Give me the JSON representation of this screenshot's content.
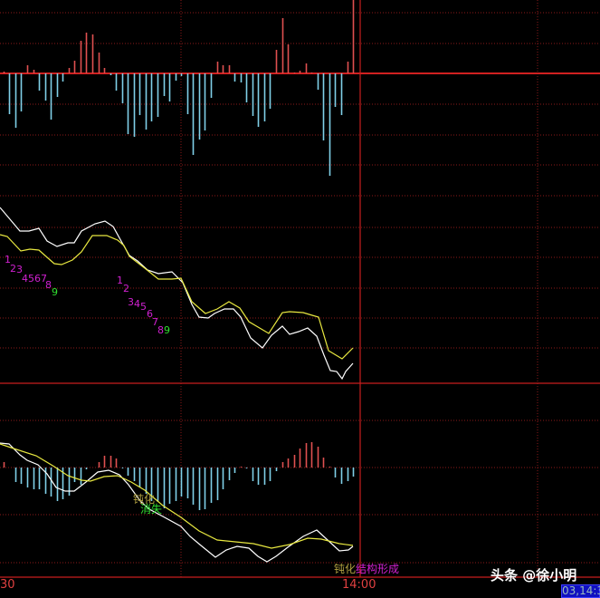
{
  "colors": {
    "grid": "#8b1a1a",
    "axis": "#c81e1e",
    "up": "#e05050",
    "down": "#7fd0e8",
    "fast": "#ffffff",
    "slow": "#e8e840",
    "magenta": "#d020d0",
    "green": "#30e030",
    "olive": "#b0a040"
  },
  "axis": {
    "time_left": "30",
    "time_mid": "14:00",
    "cursor_readout": "03,14:3"
  },
  "watermark": "头条 @徐小明",
  "annotations": {
    "blunt1": "钝化",
    "vanish": "消失",
    "blunt2": "钝化",
    "structure": "结构形成",
    "seq1": [
      "1",
      "2",
      "3",
      "4567",
      "8",
      "9"
    ],
    "seq2": [
      "1",
      "2",
      "3",
      "4",
      "5",
      "6",
      "7",
      "8",
      "9"
    ]
  },
  "chart_data": [
    {
      "type": "bar",
      "panel": "top",
      "title": "",
      "bars_x": [
        4,
        10,
        17,
        23,
        30,
        37,
        43,
        50,
        56,
        63,
        69,
        76,
        82,
        89,
        95,
        102,
        109,
        115,
        122,
        128,
        135,
        141,
        148,
        154,
        161,
        167,
        174,
        181,
        187,
        194,
        200,
        207,
        213,
        220,
        226,
        233,
        240,
        246,
        253,
        259,
        266,
        272,
        279,
        285,
        292,
        298,
        305,
        312,
        318,
        325,
        331,
        338,
        344,
        351,
        357,
        364,
        370,
        377,
        384,
        390
      ],
      "values": [
        2,
        -45,
        -60,
        -42,
        9,
        4,
        -19,
        -30,
        -51,
        -26,
        -9,
        6,
        14,
        36,
        45,
        43,
        23,
        6,
        -2,
        -19,
        -33,
        -67,
        -70,
        -46,
        -62,
        -53,
        -48,
        -25,
        -31,
        -8,
        -3,
        -45,
        -90,
        -73,
        -63,
        -27,
        13,
        9,
        9,
        -9,
        -10,
        -32,
        -47,
        -59,
        -53,
        -39,
        26,
        61,
        32,
        1,
        3,
        11,
        1,
        -18,
        -74,
        -113,
        -37,
        -46,
        13,
        81
      ]
    },
    {
      "type": "line",
      "panel": "middle",
      "series": [
        {
          "color": "fast",
          "points": [
            [
              0,
              211
            ],
            [
              22,
              185
            ],
            [
              32,
              185
            ],
            [
              43,
              188
            ],
            [
              52,
              174
            ],
            [
              63,
              168
            ],
            [
              75,
              172
            ],
            [
              82,
              172
            ],
            [
              90,
              185
            ],
            [
              105,
              193
            ],
            [
              116,
              196
            ],
            [
              125,
              190
            ],
            [
              135,
              172
            ],
            [
              143,
              158
            ],
            [
              152,
              152
            ],
            [
              163,
              142
            ],
            [
              175,
              138
            ],
            [
              190,
              140
            ],
            [
              202,
              128
            ],
            [
              212,
              104
            ],
            [
              220,
              90
            ],
            [
              230,
              89
            ],
            [
              237,
              94
            ],
            [
              248,
              99
            ],
            [
              258,
              99
            ],
            [
              266,
              90
            ],
            [
              277,
              67
            ],
            [
              290,
              56
            ],
            [
              300,
              70
            ],
            [
              312,
              80
            ],
            [
              320,
              71
            ],
            [
              330,
              74
            ],
            [
              340,
              78
            ],
            [
              350,
              69
            ],
            [
              358,
              48
            ],
            [
              365,
              31
            ],
            [
              372,
              30
            ],
            [
              378,
              22
            ],
            [
              382,
              30
            ],
            [
              390,
              39
            ]
          ]
        },
        {
          "color": "slow",
          "points": [
            [
              0,
              181
            ],
            [
              8,
              179
            ],
            [
              23,
              163
            ],
            [
              33,
              165
            ],
            [
              43,
              164
            ],
            [
              52,
              156
            ],
            [
              60,
              149
            ],
            [
              68,
              148
            ],
            [
              80,
              153
            ],
            [
              90,
              162
            ],
            [
              102,
              180
            ],
            [
              118,
              180
            ],
            [
              130,
              175
            ],
            [
              137,
              169
            ],
            [
              143,
              157
            ],
            [
              160,
              144
            ],
            [
              175,
              132
            ],
            [
              190,
              132
            ],
            [
              200,
              133
            ],
            [
              212,
              107
            ],
            [
              227,
              94
            ],
            [
              240,
              99
            ],
            [
              253,
              107
            ],
            [
              265,
              100
            ],
            [
              275,
              85
            ],
            [
              297,
              72
            ],
            [
              312,
              95
            ],
            [
              320,
              96
            ],
            [
              335,
              95
            ],
            [
              345,
              92
            ],
            [
              352,
              90
            ],
            [
              363,
              53
            ],
            [
              378,
              44
            ],
            [
              390,
              56
            ]
          ]
        }
      ]
    },
    {
      "type": "bar+line",
      "panel": "bottom",
      "bars_x": [
        4,
        17,
        23,
        30,
        37,
        43,
        50,
        56,
        63,
        69,
        76,
        82,
        89,
        95,
        109,
        115,
        122,
        128,
        135,
        141,
        148,
        154,
        161,
        167,
        174,
        181,
        187,
        194,
        200,
        207,
        213,
        220,
        226,
        233,
        240,
        246,
        253,
        259,
        266,
        272,
        279,
        285,
        292,
        298,
        305,
        312,
        318,
        325,
        331,
        338,
        344,
        351,
        357,
        364,
        370,
        377,
        384,
        390
      ],
      "values": [
        6,
        -16,
        -18,
        -22,
        -24,
        -24,
        -29,
        -32,
        -37,
        -35,
        -31,
        -16,
        -19,
        -2,
        6,
        13,
        13,
        10,
        -1,
        -9,
        -15,
        -22,
        -29,
        -37,
        -38,
        -45,
        -40,
        -37,
        -32,
        -34,
        -41,
        -47,
        -46,
        -39,
        -36,
        -24,
        -14,
        -6,
        1,
        -1,
        -15,
        -19,
        -19,
        -15,
        -4,
        6,
        10,
        14,
        21,
        27,
        28,
        23,
        11,
        1,
        -11,
        -18,
        -15,
        -10
      ],
      "series": [
        {
          "color": "fast",
          "points": [
            [
              0,
              27
            ],
            [
              10,
              26
            ],
            [
              22,
              14
            ],
            [
              30,
              8
            ],
            [
              42,
              3
            ],
            [
              52,
              -7
            ],
            [
              62,
              -22
            ],
            [
              72,
              -26
            ],
            [
              82,
              -26
            ],
            [
              95,
              -16
            ],
            [
              108,
              -5
            ],
            [
              120,
              -3
            ],
            [
              132,
              -8
            ],
            [
              142,
              -19
            ],
            [
              155,
              -37
            ],
            [
              165,
              -46
            ],
            [
              180,
              -54
            ],
            [
              200,
              -65
            ],
            [
              210,
              -76
            ],
            [
              222,
              -86
            ],
            [
              238,
              -99
            ],
            [
              250,
              -91
            ],
            [
              262,
              -87
            ],
            [
              275,
              -89
            ],
            [
              285,
              -98
            ],
            [
              295,
              -104
            ],
            [
              305,
              -98
            ],
            [
              318,
              -88
            ],
            [
              335,
              -76
            ],
            [
              350,
              -69
            ],
            [
              362,
              -80
            ],
            [
              375,
              -92
            ],
            [
              385,
              -91
            ],
            [
              390,
              -87
            ]
          ]
        },
        {
          "color": "slow",
          "points": [
            [
              0,
              26
            ],
            [
              15,
              21
            ],
            [
              40,
              13
            ],
            [
              60,
              1
            ],
            [
              75,
              -9
            ],
            [
              90,
              -14
            ],
            [
              100,
              -15
            ],
            [
              115,
              -10
            ],
            [
              130,
              -9
            ],
            [
              145,
              -16
            ],
            [
              160,
              -25
            ],
            [
              180,
              -42
            ],
            [
              200,
              -55
            ],
            [
              220,
              -70
            ],
            [
              240,
              -80
            ],
            [
              260,
              -82
            ],
            [
              280,
              -84
            ],
            [
              300,
              -89
            ],
            [
              320,
              -85
            ],
            [
              340,
              -78
            ],
            [
              355,
              -79
            ],
            [
              375,
              -84
            ],
            [
              390,
              -86
            ]
          ]
        }
      ]
    }
  ]
}
